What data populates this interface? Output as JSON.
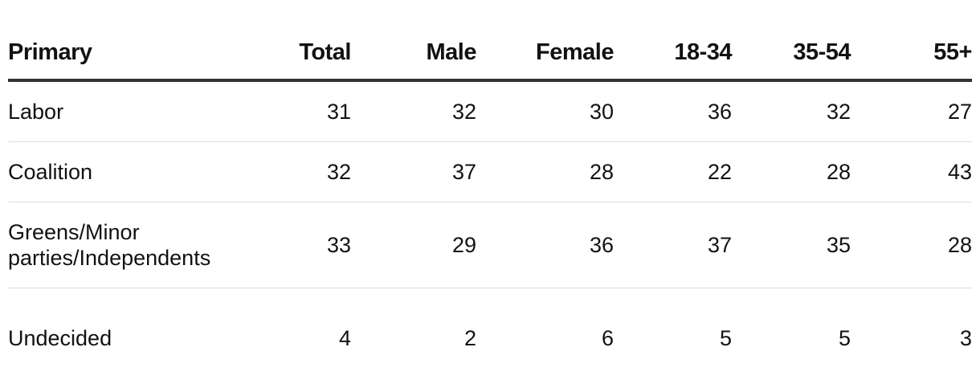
{
  "table": {
    "headers": [
      "Primary",
      "Total",
      "Male",
      "Female",
      "18-34",
      "35-54",
      "55+"
    ],
    "rows": [
      [
        "Labor",
        31,
        32,
        30,
        36,
        32,
        27
      ],
      [
        "Coalition",
        32,
        37,
        28,
        22,
        28,
        43
      ],
      [
        "Greens/Minor parties/Independents",
        33,
        29,
        36,
        37,
        35,
        28
      ],
      [
        "Undecided",
        4,
        2,
        6,
        5,
        5,
        3
      ]
    ]
  }
}
